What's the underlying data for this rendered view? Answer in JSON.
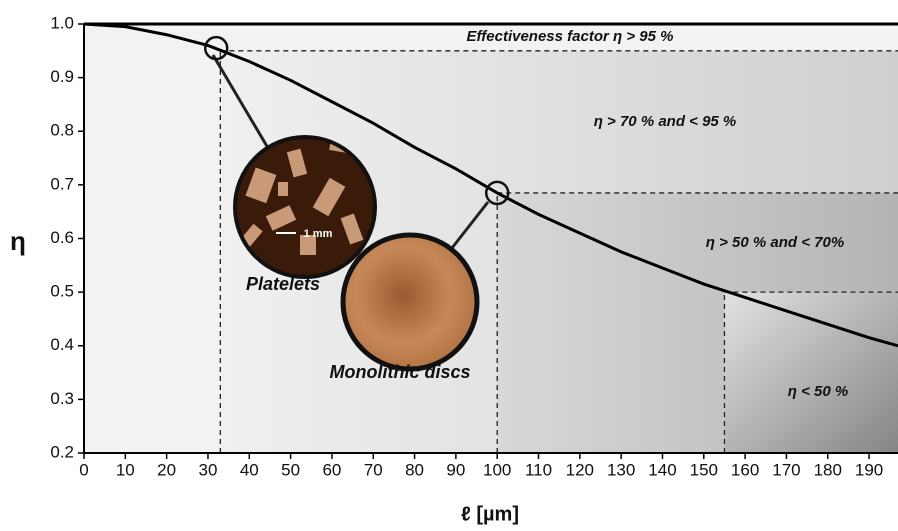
{
  "chart_data": {
    "type": "line",
    "y_label": "η",
    "x_label": "ℓ [µm]",
    "x": [
      0,
      10,
      20,
      30,
      40,
      50,
      60,
      70,
      80,
      90,
      100,
      110,
      120,
      130,
      140,
      150,
      160,
      170,
      180,
      190,
      197
    ],
    "values": [
      1.0,
      0.995,
      0.98,
      0.96,
      0.93,
      0.895,
      0.855,
      0.815,
      0.77,
      0.73,
      0.685,
      0.645,
      0.61,
      0.575,
      0.545,
      0.515,
      0.49,
      0.465,
      0.44,
      0.415,
      0.4
    ],
    "color": "#000000",
    "xlim": [
      0,
      197
    ],
    "ylim": [
      0.2,
      1.0
    ],
    "xticks": [
      0,
      10,
      20,
      30,
      40,
      50,
      60,
      70,
      80,
      90,
      100,
      110,
      120,
      130,
      140,
      150,
      160,
      170,
      180,
      190
    ],
    "yticks": [
      0.2,
      0.3,
      0.4,
      0.5,
      0.6,
      0.7,
      0.8,
      0.9,
      {
        "value": 1.0,
        "label": "1.0"
      }
    ],
    "regions": [
      {
        "label": "Effectiveness factor η > 95 %"
      },
      {
        "label": "η > 70 % and < 95 %",
        "x": 33,
        "y": 0.95
      },
      {
        "label": "η  > 50 % and < 70%",
        "x": 100,
        "y": 0.685
      },
      {
        "label": "η < 50 %",
        "x": 155,
        "y": 0.5
      }
    ],
    "markers": [
      {
        "x": 32,
        "y": 0.955
      },
      {
        "x": 100,
        "y": 0.685
      }
    ],
    "annotations": [
      "Platelets",
      "Monolithic discs",
      "1 mm"
    ]
  }
}
